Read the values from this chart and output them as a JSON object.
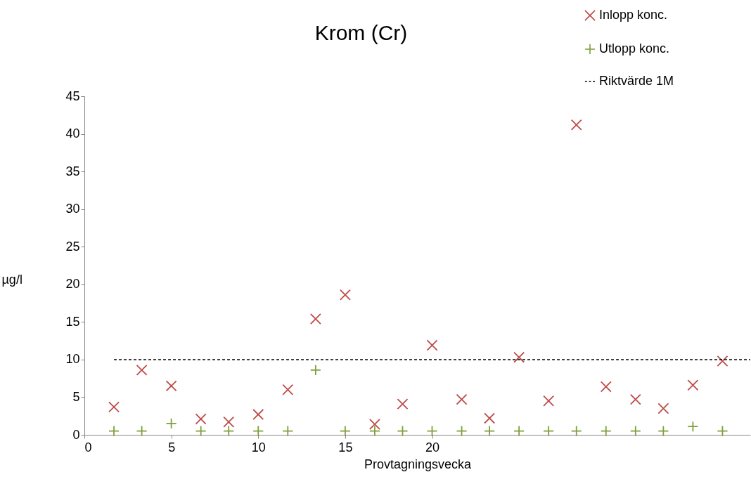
{
  "chart_data": {
    "type": "scatter",
    "title": "Krom (Cr)",
    "xlabel": "Provtagningsvecka",
    "ylabel": "µg/l",
    "x": [
      1.7,
      3.3,
      5,
      6.7,
      8.3,
      10,
      11.7,
      13.3,
      15,
      16.7,
      18.3,
      20,
      21.7,
      23.3,
      25,
      26.7,
      28.3,
      30,
      31.7,
      33.3,
      35,
      36.7
    ],
    "xlim": [
      0,
      38.3
    ],
    "xticks": [
      0,
      5,
      10,
      15,
      20
    ],
    "ylim": [
      0,
      45
    ],
    "yticks": [
      0,
      5,
      10,
      15,
      20,
      25,
      30,
      35,
      40,
      45
    ],
    "legend": "top right",
    "grid": false,
    "series": [
      {
        "name": "Inlopp konc.",
        "color": "#be4b48",
        "marker": "cross",
        "values": [
          3.7,
          8.6,
          6.5,
          2.1,
          1.7,
          2.7,
          6.0,
          15.4,
          18.6,
          1.4,
          4.1,
          11.9,
          4.7,
          2.2,
          10.3,
          4.5,
          41.2,
          6.4,
          4.7,
          3.5,
          6.6,
          9.8
        ]
      },
      {
        "name": "Utlopp konc.",
        "color": "#7f9f3a",
        "marker": "plus",
        "values": [
          0.5,
          0.5,
          1.5,
          0.5,
          0.5,
          0.5,
          0.5,
          8.6,
          0.5,
          0.5,
          0.5,
          0.5,
          0.5,
          0.5,
          0.5,
          0.5,
          0.5,
          0.5,
          0.5,
          0.5,
          1.1,
          0.5
        ]
      },
      {
        "name": "Riktvärde 1M",
        "color": "#000000",
        "type": "line",
        "marker": "none",
        "line_style": "dashed",
        "x": [
          1.7,
          38.3
        ],
        "values": [
          10,
          10
        ]
      }
    ]
  }
}
